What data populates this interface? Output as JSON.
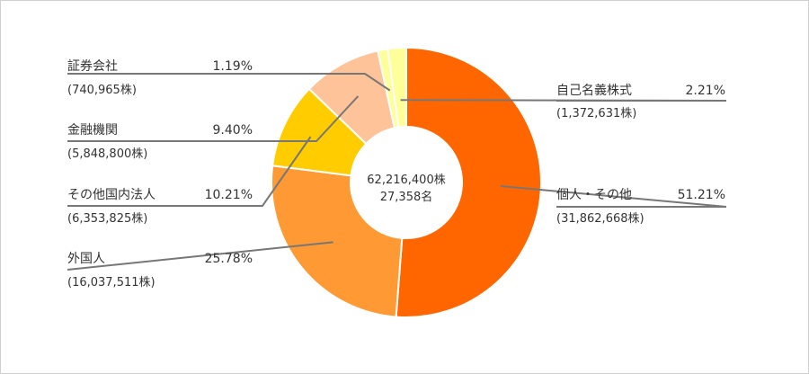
{
  "chart_data": {
    "type": "pie",
    "center": {
      "total_shares": "62,216,400株",
      "shareholders": "27,358名"
    },
    "slices": [
      {
        "label": "個人・その他",
        "percent": 51.21,
        "shares": "(31,862,668株)",
        "percent_label": "51.21%",
        "color": "#ff6600"
      },
      {
        "label": "外国人",
        "percent": 25.78,
        "shares": "(16,037,511株)",
        "percent_label": "25.78%",
        "color": "#ff9933"
      },
      {
        "label": "その他国内法人",
        "percent": 10.21,
        "shares": "(6,353,825株)",
        "percent_label": "10.21%",
        "color": "#ffcc00"
      },
      {
        "label": "金融機関",
        "percent": 9.4,
        "shares": "(5,848,800株)",
        "percent_label": "9.40%",
        "color": "#ffc399"
      },
      {
        "label": "証券会社",
        "percent": 1.19,
        "shares": "(740,965株)",
        "percent_label": "1.19%",
        "color": "#ffff99"
      },
      {
        "label": "自己名義株式",
        "percent": 2.21,
        "shares": "(1,372,631株)",
        "percent_label": "2.21%",
        "color": "#ffff99"
      }
    ]
  }
}
